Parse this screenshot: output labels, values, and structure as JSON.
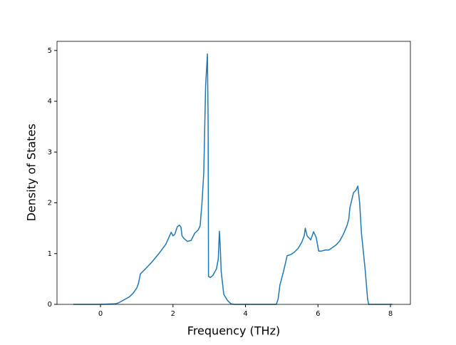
{
  "chart_data": {
    "type": "line",
    "xlabel": "Frequency (THz)",
    "ylabel": "Density of States",
    "color": "#1f77b4",
    "x": [
      -0.75,
      0,
      0.4,
      0.5,
      0.6,
      0.8,
      0.9,
      1.0,
      1.05,
      1.1,
      1.2,
      1.4,
      1.6,
      1.8,
      1.95,
      2.0,
      2.05,
      2.12,
      2.18,
      2.22,
      2.25,
      2.3,
      2.4,
      2.5,
      2.6,
      2.7,
      2.75,
      2.8,
      2.85,
      2.9,
      2.95,
      2.97,
      2.98,
      3.03,
      3.1,
      3.2,
      3.25,
      3.28,
      3.3,
      3.33,
      3.4,
      3.5,
      3.6,
      3.7,
      4.85,
      4.9,
      4.95,
      5.05,
      5.15,
      5.25,
      5.35,
      5.45,
      5.55,
      5.62,
      5.65,
      5.7,
      5.8,
      5.88,
      5.95,
      6.02,
      6.1,
      6.2,
      6.3,
      6.4,
      6.5,
      6.6,
      6.7,
      6.8,
      6.85,
      6.88,
      6.93,
      6.98,
      7.05,
      7.1,
      7.15,
      7.2,
      7.3,
      7.37,
      7.4,
      8.05
    ],
    "values": [
      0,
      0,
      0.01,
      0.03,
      0.07,
      0.15,
      0.22,
      0.32,
      0.42,
      0.6,
      0.67,
      0.82,
      0.99,
      1.18,
      1.42,
      1.35,
      1.38,
      1.53,
      1.56,
      1.52,
      1.35,
      1.3,
      1.24,
      1.26,
      1.4,
      1.47,
      1.55,
      2.0,
      2.6,
      4.3,
      4.93,
      3.5,
      0.55,
      0.53,
      0.57,
      0.7,
      0.9,
      1.44,
      1.2,
      0.65,
      0.2,
      0.08,
      0.01,
      0,
      0,
      0.1,
      0.38,
      0.65,
      0.96,
      0.98,
      1.03,
      1.1,
      1.22,
      1.35,
      1.5,
      1.35,
      1.27,
      1.43,
      1.32,
      1.05,
      1.05,
      1.07,
      1.07,
      1.12,
      1.17,
      1.25,
      1.38,
      1.55,
      1.68,
      1.9,
      2.05,
      2.2,
      2.25,
      2.33,
      2.0,
      1.4,
      0.7,
      0.1,
      0,
      0
    ],
    "xlim": [
      -1.2,
      8.55
    ],
    "xticks": [
      0,
      2,
      4,
      6,
      8
    ],
    "ylim": [
      0,
      5.18
    ],
    "yticks": [
      0,
      1,
      2,
      3,
      4,
      5
    ]
  }
}
